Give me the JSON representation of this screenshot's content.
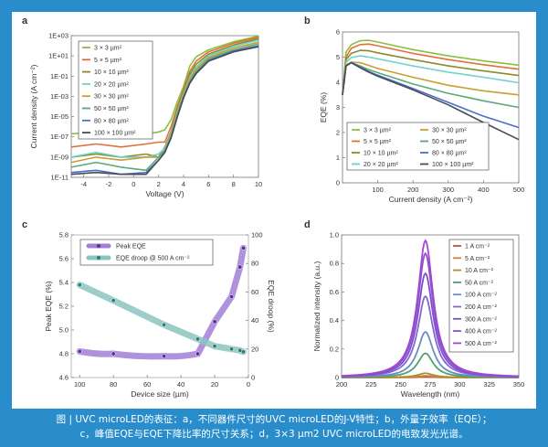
{
  "caption": {
    "line1": "图 | UVC microLED的表征：a，不同器件尺寸的UVC microLED的J-V特性；b，外量子效率（EQE）；",
    "line2": "c，峰值EQE与EQE下降比率的尺寸关系；d，3×3 μm2 UVC microLED的电致发光光谱。"
  },
  "chart_data": [
    {
      "panel": "a",
      "type": "line",
      "xlabel": "Voltage (V)",
      "ylabel": "Current density (A cm⁻²)",
      "xlim": [
        -5,
        10
      ],
      "ylim": [
        1e-11,
        1000.0
      ],
      "yscale": "log",
      "xticks": [
        -4,
        -2,
        0,
        2,
        4,
        6,
        8,
        10
      ],
      "yticks": [
        1e-11,
        1e-09,
        1e-07,
        1e-05,
        0.001,
        0.1,
        10.0,
        1000.0
      ],
      "ytick_labels": [
        "1E-11",
        "1E-09",
        "1E-07",
        "1E-05",
        "1E-03",
        "1E-01",
        "1E+01",
        "1E+03"
      ],
      "legend": "top-left",
      "x": [
        -5,
        -3,
        -1,
        1,
        2,
        2.5,
        3,
        3.5,
        4,
        4.5,
        5,
        6,
        8,
        10
      ],
      "series": [
        {
          "name": "3 × 3 µm²",
          "color": "#8cbf3f",
          "values": [
            2e-07,
            3e-07,
            1e-07,
            2e-07,
            3e-07,
            5e-07,
            5e-06,
            0.0003,
            0.01,
            1,
            8,
            40,
            250,
            900
          ]
        },
        {
          "name": "5 × 5 µm²",
          "color": "#e0703a",
          "values": [
            1e-08,
            2e-08,
            1e-08,
            2e-08,
            3e-08,
            3e-08,
            1e-06,
            0.0001,
            0.005,
            0.3,
            3,
            25,
            180,
            700
          ]
        },
        {
          "name": "10 × 10 µm²",
          "color": "#8a8a2a",
          "values": [
            1e-09,
            2e-09,
            1e-09,
            2e-09,
            1e-09,
            1e-08,
            3e-07,
            5e-05,
            0.003,
            0.15,
            1.5,
            15,
            120,
            500
          ]
        },
        {
          "name": "20 × 20 µm²",
          "color": "#6cd0d0",
          "values": [
            1e-09,
            3e-09,
            1e-09,
            1e-09,
            2e-09,
            8e-09,
            2e-07,
            3e-05,
            0.002,
            0.08,
            0.8,
            10,
            90,
            350
          ]
        },
        {
          "name": "30 × 30 µm²",
          "color": "#c8a030",
          "values": [
            3e-10,
            1e-09,
            5e-10,
            1e-09,
            1e-09,
            5e-09,
            1.5e-07,
            2e-05,
            0.0015,
            0.05,
            0.5,
            7,
            60,
            220
          ]
        },
        {
          "name": "50 × 50 µm²",
          "color": "#5aaa7a",
          "values": [
            1e-10,
            3e-10,
            1e-10,
            5e-11,
            1e-09,
            4e-09,
            1e-07,
            1.5e-05,
            0.001,
            0.03,
            0.3,
            5,
            40,
            150
          ]
        },
        {
          "name": "80 × 80 µm²",
          "color": "#4a70c8",
          "values": [
            3e-11,
            5e-11,
            2e-11,
            3e-11,
            5e-10,
            3e-09,
            8e-08,
            1e-05,
            0.0008,
            0.02,
            0.2,
            3.5,
            30,
            100
          ]
        },
        {
          "name": "100 × 100 µm²",
          "color": "#4a4a5a",
          "values": [
            2e-11,
            3e-11,
            2e-11,
            2e-11,
            5e-10,
            3e-09,
            8e-08,
            1e-05,
            0.0007,
            0.02,
            0.18,
            3,
            25,
            80
          ]
        }
      ]
    },
    {
      "panel": "b",
      "type": "line",
      "xlabel": "Current density (A cm⁻²)",
      "ylabel": "EQE (%)",
      "xlim": [
        0,
        500
      ],
      "ylim": [
        0,
        6
      ],
      "xticks": [
        100,
        200,
        300,
        400,
        500
      ],
      "yticks": [
        0,
        1,
        2,
        3,
        4,
        5,
        6
      ],
      "legend": "bottom-left",
      "x": [
        0,
        10,
        25,
        50,
        75,
        100,
        200,
        300,
        400,
        500
      ],
      "series": [
        {
          "name": "3 × 3 µm²",
          "color": "#8cbf3f",
          "values": [
            3.5,
            5.2,
            5.5,
            5.65,
            5.67,
            5.6,
            5.3,
            5.05,
            4.85,
            4.68
          ]
        },
        {
          "name": "5 × 5 µm²",
          "color": "#e0703a",
          "values": [
            3.5,
            5.0,
            5.35,
            5.5,
            5.52,
            5.45,
            5.15,
            4.9,
            4.7,
            4.52
          ]
        },
        {
          "name": "10 × 10 µm²",
          "color": "#8a8a2a",
          "values": [
            3.5,
            4.9,
            5.15,
            5.27,
            5.25,
            5.17,
            4.9,
            4.65,
            4.45,
            4.27
          ]
        },
        {
          "name": "20 × 20 µm²",
          "color": "#6cd0d0",
          "values": [
            3.5,
            4.8,
            4.98,
            5.05,
            5.0,
            4.93,
            4.65,
            4.4,
            4.2,
            3.98
          ]
        },
        {
          "name": "30 × 30 µm²",
          "color": "#c8a030",
          "values": [
            3.5,
            4.7,
            4.8,
            4.78,
            4.67,
            4.55,
            4.2,
            3.88,
            3.66,
            3.5
          ]
        },
        {
          "name": "50 × 50 µm²",
          "color": "#5aaa7a",
          "values": [
            3.5,
            4.65,
            4.78,
            4.65,
            4.5,
            4.38,
            3.93,
            3.56,
            3.26,
            3.0
          ]
        },
        {
          "name": "80 × 80 µm²",
          "color": "#4a70c8",
          "values": [
            3.5,
            4.65,
            4.78,
            4.6,
            4.43,
            4.28,
            3.75,
            3.2,
            2.65,
            2.2
          ]
        },
        {
          "name": "100 × 100 µm²",
          "color": "#4a4a5a",
          "values": [
            3.5,
            4.65,
            4.78,
            4.58,
            4.4,
            4.24,
            3.7,
            3.1,
            2.4,
            1.72
          ]
        }
      ]
    },
    {
      "panel": "c",
      "type": "scatter",
      "xlabel": "Device size (µm)",
      "ylabel": "Peak EQE (%)",
      "ylabel_right": "EQE droop (%)",
      "xlim": [
        105,
        0
      ],
      "ylim": [
        4.6,
        5.8
      ],
      "ylim_right": [
        0,
        100
      ],
      "xticks": [
        100,
        80,
        60,
        40,
        20,
        0
      ],
      "yticks": [
        4.6,
        4.8,
        5.0,
        5.2,
        5.4,
        5.6,
        5.8
      ],
      "yticks_right": [
        0,
        20,
        40,
        60,
        80,
        100
      ],
      "legend": "top-left",
      "x": [
        100,
        80,
        50,
        30,
        20,
        10,
        5,
        3
      ],
      "series": [
        {
          "name": "Peak EQE",
          "axis": "left",
          "color": "#a27fd6",
          "marker": "#5a2d9c",
          "values": [
            4.82,
            4.8,
            4.78,
            4.8,
            5.07,
            5.28,
            5.53,
            5.69
          ]
        },
        {
          "name": "EQE droop @ 500 A cm⁻²",
          "axis": "right",
          "color": "#8cc4c0",
          "marker": "#2f7a78",
          "values": [
            65,
            54,
            37,
            27,
            22,
            20,
            19,
            18
          ]
        }
      ]
    },
    {
      "panel": "d",
      "type": "line",
      "xlabel": "Wavelength (nm)",
      "ylabel": "Normalized intensity (a.u.)",
      "xlim": [
        200,
        350
      ],
      "ylim": [
        0,
        1.0
      ],
      "xticks": [
        200,
        225,
        250,
        275,
        300,
        325,
        350
      ],
      "yticks": [
        0,
        0.2,
        0.4,
        0.6,
        0.8,
        1.0
      ],
      "ytick_labels": [
        "0",
        "0.2",
        "0.4",
        "0.6",
        "0.8",
        "1.0"
      ],
      "legend": "top-right",
      "peak_wavelength": 271,
      "fwhm_nm": 16,
      "series": [
        {
          "name": "1 A cm⁻²",
          "color": "#c0503a",
          "peak": 0.005
        },
        {
          "name": "5 A cm⁻²",
          "color": "#d08040",
          "peak": 0.012
        },
        {
          "name": "10 A cm⁻²",
          "color": "#a89030",
          "peak": 0.03
        },
        {
          "name": "50 A cm⁻²",
          "color": "#50a070",
          "peak": 0.17
        },
        {
          "name": "100 A cm⁻²",
          "color": "#6a8cc4",
          "peak": 0.32
        },
        {
          "name": "200 A cm⁻²",
          "color": "#8466d6",
          "peak": 0.57
        },
        {
          "name": "300 A cm⁻²",
          "color": "#7452cc",
          "peak": 0.73
        },
        {
          "name": "400 A cm⁻²",
          "color": "#9050c8",
          "peak": 0.87
        },
        {
          "name": "500 A cm⁻²",
          "color": "#a246d4",
          "peak": 0.96
        }
      ]
    }
  ],
  "panel_labels": [
    "a",
    "b",
    "c",
    "d"
  ]
}
